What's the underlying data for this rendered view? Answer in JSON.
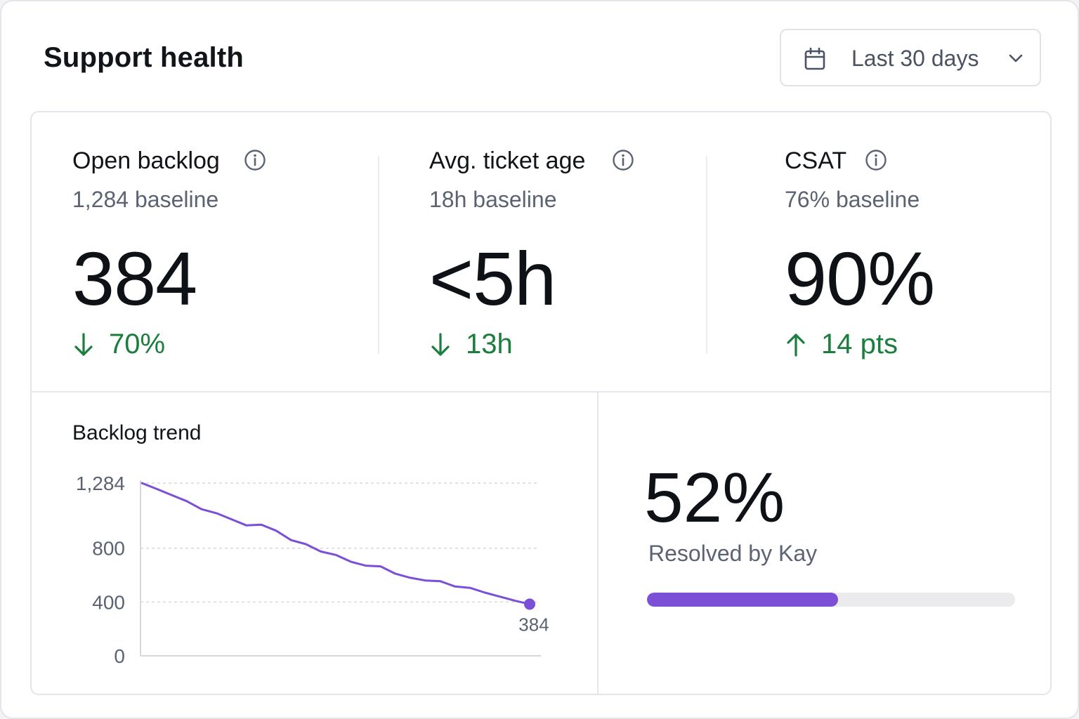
{
  "header": {
    "title": "Support health",
    "date_range": {
      "label": "Last 30 days",
      "icon": "calendar-icon",
      "dropdown_icon": "chevron-down-icon"
    }
  },
  "kpis": [
    {
      "title": "Open backlog",
      "baseline": "1,284 baseline",
      "value": "384",
      "delta": "70%",
      "direction": "down",
      "info_icon": "info-icon"
    },
    {
      "title": "Avg. ticket age",
      "baseline": "18h baseline",
      "value": "<5h",
      "delta": "13h",
      "direction": "down",
      "info_icon": "info-icon"
    },
    {
      "title": "CSAT",
      "baseline": "76% baseline",
      "value": "90%",
      "delta": "14 pts",
      "direction": "up",
      "info_icon": "info-icon"
    }
  ],
  "colors": {
    "positive": "#1a7f3c",
    "accent": "#7b4fd6"
  },
  "trend": {
    "title": "Backlog trend"
  },
  "chart_data": {
    "type": "line",
    "title": "Backlog trend",
    "xlabel": "",
    "ylabel": "",
    "y_ticks": [
      "0",
      "400",
      "800",
      "1,284"
    ],
    "y_tick_values": [
      0,
      400,
      800,
      1284
    ],
    "ylim": [
      0,
      1284
    ],
    "grid": true,
    "series": [
      {
        "values": [
          1284,
          1240,
          1195,
          1150,
          1090,
          1060,
          1015,
          970,
          975,
          930,
          860,
          830,
          775,
          750,
          700,
          670,
          665,
          610,
          580,
          560,
          555,
          515,
          505,
          470,
          440,
          410,
          384
        ]
      }
    ],
    "end_label": "384"
  },
  "resolved": {
    "value": "52%",
    "label": "Resolved by Kay",
    "fraction": 0.52
  }
}
